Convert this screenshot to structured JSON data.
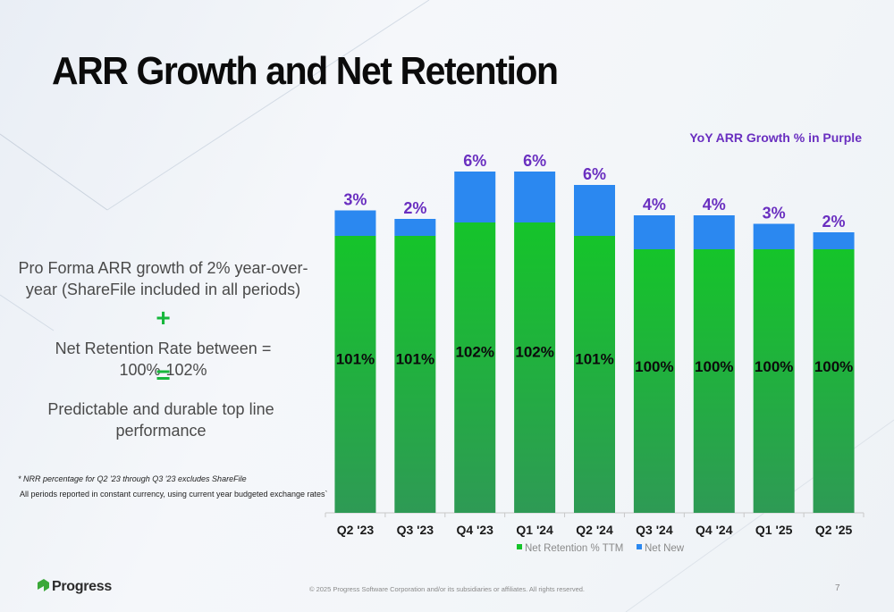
{
  "slide": {
    "title": "ARR Growth and Net Retention",
    "left_panel": {
      "statement1": "Pro Forma ARR growth of 2% year-over-year (ShareFile included in all periods)",
      "plus": "+",
      "statement2": "Net Retention Rate between = 100%-102%",
      "equals": "=",
      "statement3": "Predictable and durable top line performance"
    },
    "footnote1": "* NRR percentage for Q2 '23 through Q3 '23 excludes ShareFile",
    "footnote2": "All periods reported in constant currency, using current year budgeted exchange rates`",
    "brand": "Progress",
    "copyright": "© 2025 Progress Software Corporation and/or its subsidiaries or affiliates. All rights reserved.",
    "page_number": "7"
  },
  "colors": {
    "net_retention_top": "#15c42a",
    "net_retention_bottom": "#2e9a55",
    "net_new": "#2b88f0",
    "growth_label": "#6a2fc0",
    "logo_green": "#3aa838"
  },
  "chart_data": {
    "type": "bar",
    "stacked": true,
    "subtitle": "YoY ARR Growth % in Purple",
    "categories": [
      "Q2 '23",
      "Q3 '23",
      "Q4 '23",
      "Q1 '24",
      "Q2 '24",
      "Q3 '24",
      "Q4 '24",
      "Q1 '25",
      "Q2 '25"
    ],
    "series": [
      {
        "name": "Net Retention % TTM",
        "values": [
          101,
          101,
          102,
          102,
          101,
          100,
          100,
          100,
          100
        ],
        "labels": [
          "101%",
          "101%",
          "102%",
          "102%",
          "101%",
          "100%",
          "100%",
          "100%",
          "100%"
        ]
      },
      {
        "name": "Net New",
        "values": [
          3,
          2,
          6,
          6,
          6,
          4,
          4,
          3,
          2
        ]
      }
    ],
    "yoy_growth_labels": [
      "3%",
      "2%",
      "6%",
      "6%",
      "6%",
      "4%",
      "4%",
      "3%",
      "2%"
    ],
    "legend": "bottom",
    "grid": false
  }
}
